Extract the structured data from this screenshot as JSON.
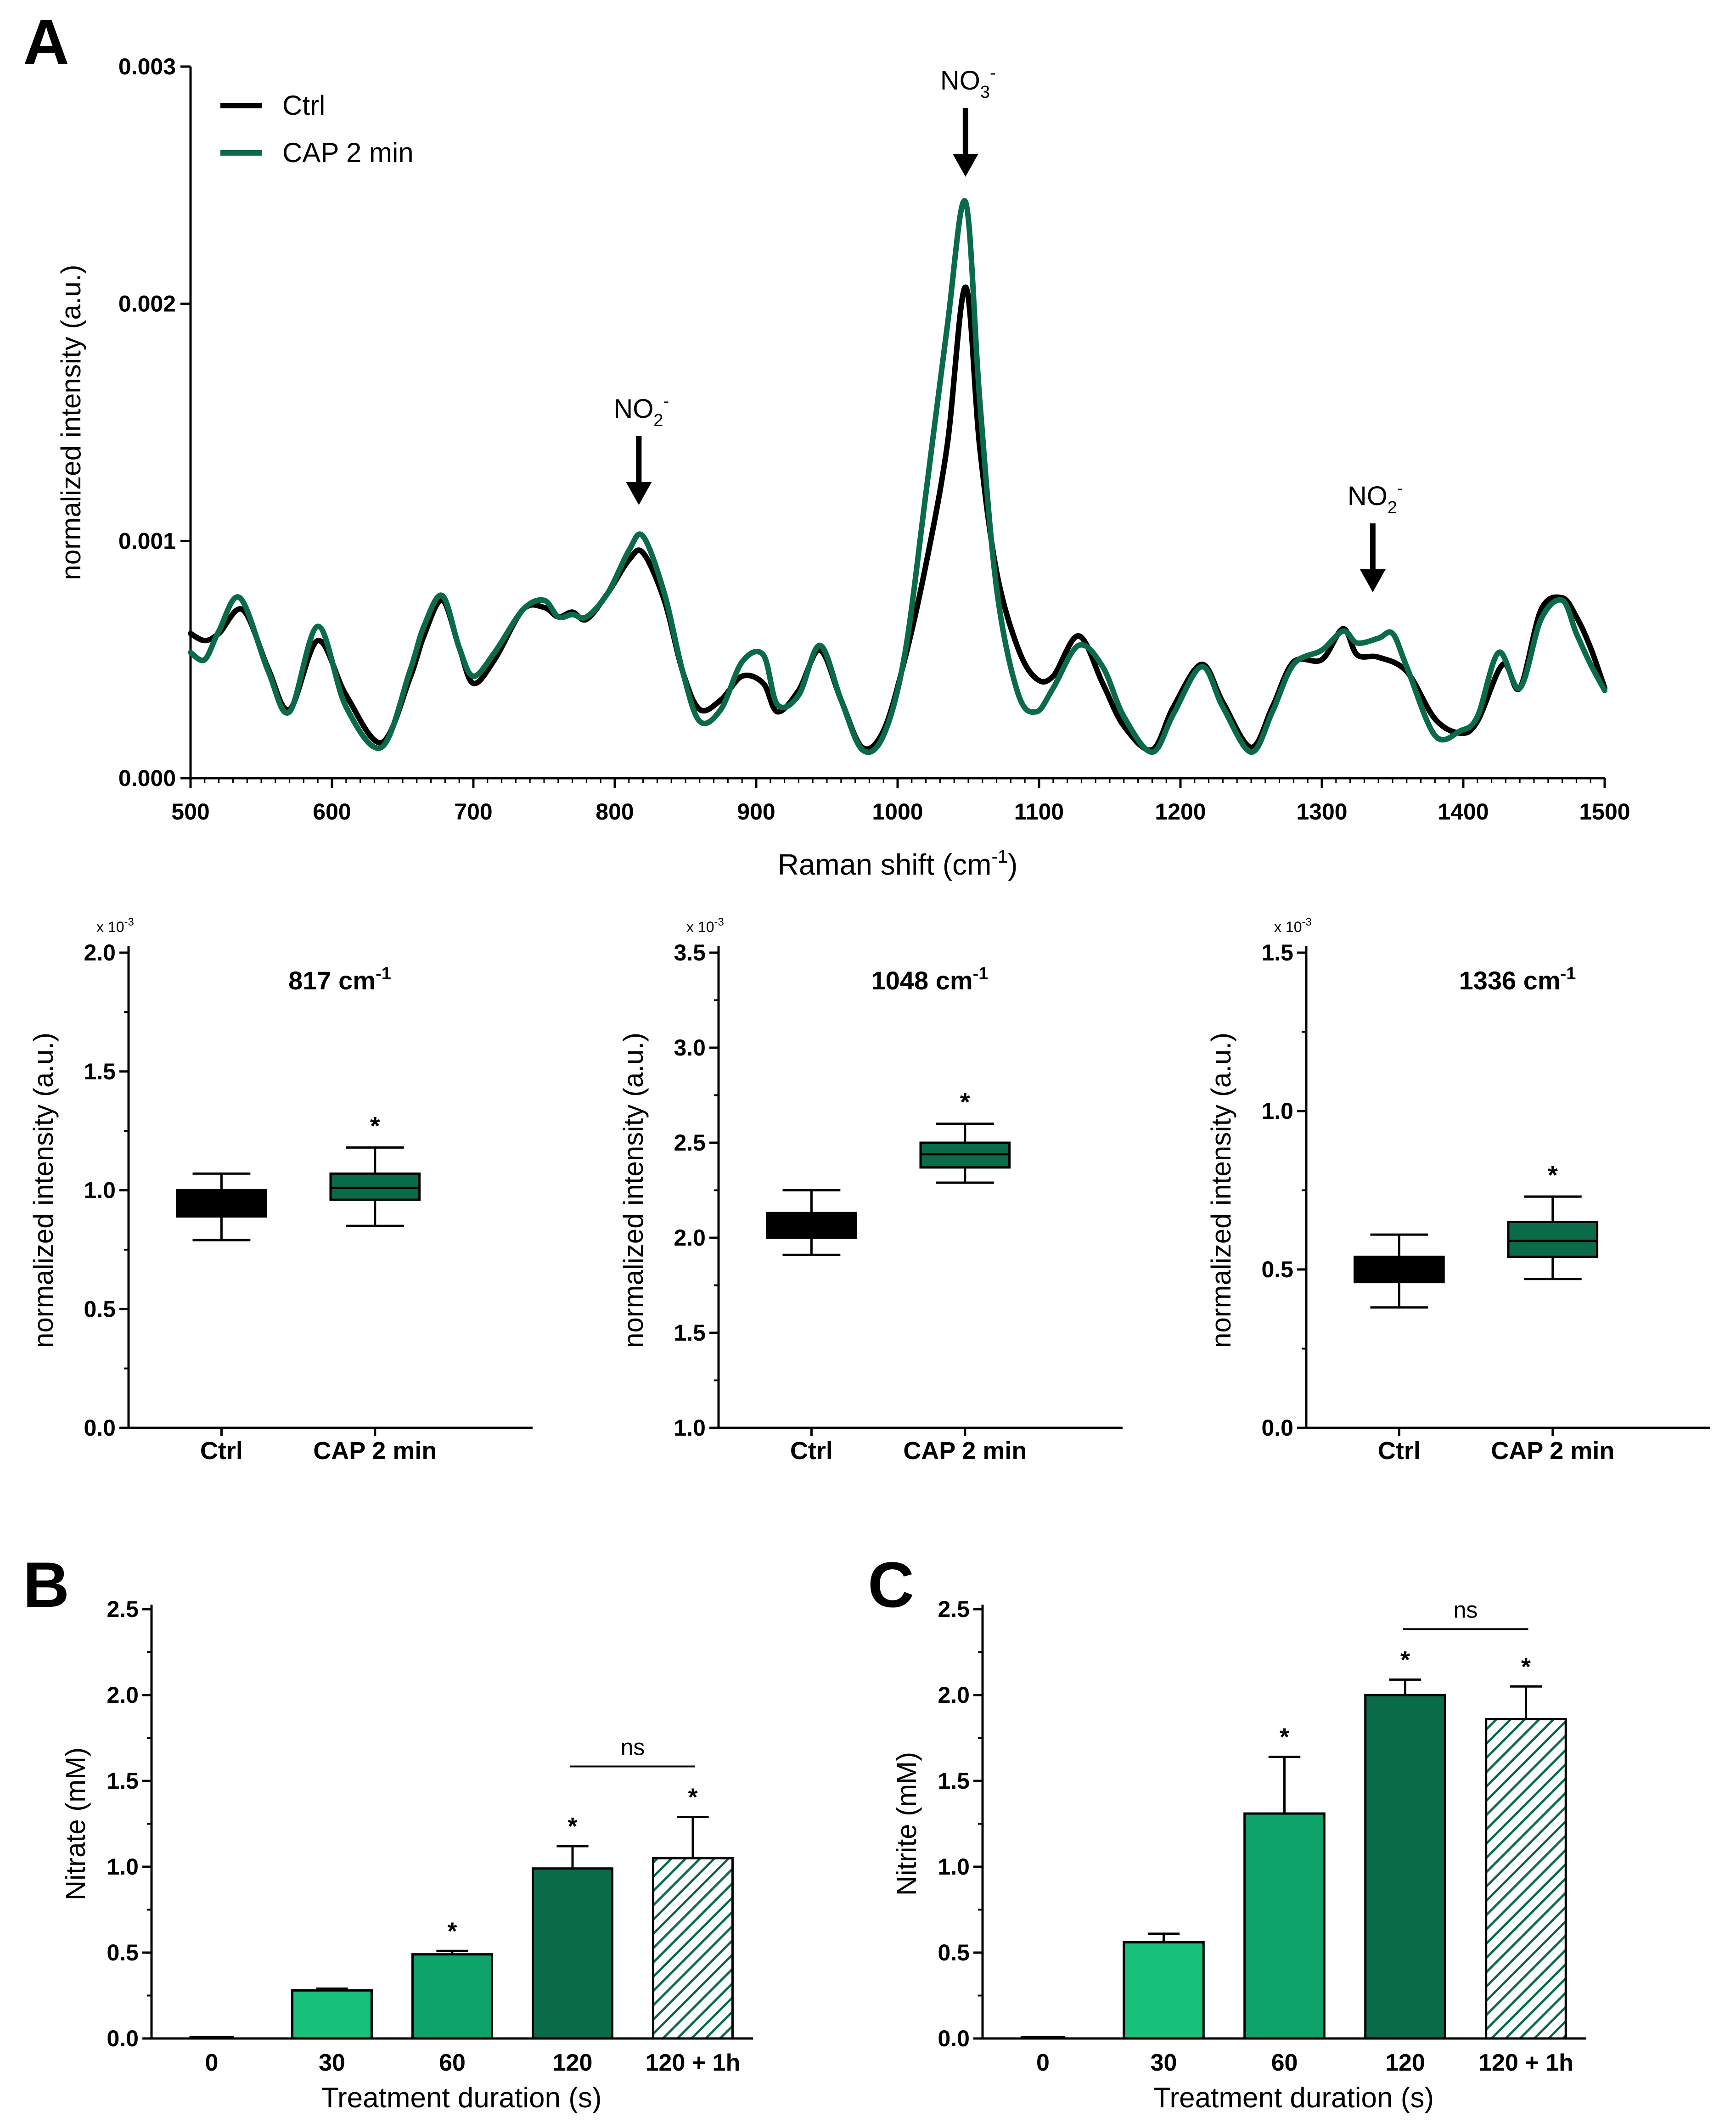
{
  "panels": {
    "A": "A",
    "B": "B",
    "C": "C"
  },
  "colors": {
    "ctrl": "#000000",
    "cap": "#0a6b49",
    "bar30": "#17c17b",
    "bar60": "#0ea36b",
    "bar120": "#0a6b49",
    "hatch": "#0a6b49"
  },
  "chart_data": [
    {
      "id": "spectrum",
      "type": "line",
      "title": "",
      "xlabel": "Raman shift (cm",
      "xlabel_sup": "-1",
      "xlabel_close": ")",
      "ylabel": "normalized intensity (a.u.)",
      "xlim": [
        500,
        1500
      ],
      "ylim": [
        0,
        0.003
      ],
      "xticks": [
        "500",
        "600",
        "700",
        "800",
        "900",
        "1000",
        "1100",
        "1200",
        "1300",
        "1400",
        "1500"
      ],
      "yticks": [
        "0.000",
        "0.001",
        "0.002",
        "0.003"
      ],
      "legend": [
        "Ctrl",
        "CAP 2 min"
      ],
      "annotations": [
        {
          "x": 817,
          "base": "NO",
          "sub": "2",
          "sup": "-"
        },
        {
          "x": 1048,
          "base": "NO",
          "sub": "3",
          "sup": "-"
        },
        {
          "x": 1336,
          "base": "NO",
          "sub": "2",
          "sup": "-"
        }
      ],
      "series": [
        {
          "name": "Ctrl",
          "x": [
            500,
            510,
            520,
            537,
            555,
            570,
            590,
            610,
            635,
            655,
            665,
            678,
            690,
            700,
            715,
            735,
            750,
            760,
            770,
            780,
            795,
            810,
            820,
            835,
            848,
            860,
            875,
            890,
            905,
            915,
            930,
            945,
            960,
            975,
            990,
            1005,
            1020,
            1035,
            1048,
            1058,
            1070,
            1085,
            1098,
            1110,
            1128,
            1145,
            1160,
            1180,
            1195,
            1215,
            1230,
            1250,
            1265,
            1280,
            1300,
            1315,
            1325,
            1340,
            1360,
            1380,
            1398,
            1410,
            1428,
            1440,
            1455,
            1470,
            1480,
            1490,
            1500
          ],
          "y": [
            0.00061,
            0.00058,
            0.00061,
            0.00071,
            0.00046,
            0.00029,
            0.00058,
            0.00035,
            0.00015,
            0.00042,
            0.0006,
            0.00075,
            0.00055,
            0.0004,
            0.0005,
            0.00071,
            0.00072,
            0.00068,
            0.0007,
            0.00067,
            0.00078,
            0.00092,
            0.00095,
            0.00075,
            0.00045,
            0.00029,
            0.00033,
            0.00043,
            0.0004,
            0.00028,
            0.00037,
            0.00054,
            0.00033,
            0.00013,
            0.0002,
            0.0005,
            0.0009,
            0.0014,
            0.00207,
            0.0014,
            0.00087,
            0.00055,
            0.00042,
            0.00043,
            0.0006,
            0.0004,
            0.00022,
            0.00012,
            0.0003,
            0.00048,
            0.00032,
            0.00013,
            0.0003,
            0.00049,
            0.0005,
            0.00063,
            0.00052,
            0.00051,
            0.00045,
            0.00025,
            0.00019,
            0.00024,
            0.00048,
            0.00038,
            0.00071,
            0.00076,
            0.00068,
            0.00055,
            0.00038
          ]
        },
        {
          "name": "CAP 2 min",
          "x": [
            500,
            510,
            520,
            535,
            555,
            570,
            590,
            610,
            635,
            655,
            665,
            678,
            690,
            700,
            715,
            735,
            750,
            760,
            770,
            780,
            795,
            810,
            820,
            835,
            848,
            860,
            875,
            890,
            905,
            915,
            930,
            945,
            960,
            975,
            990,
            1005,
            1020,
            1035,
            1048,
            1058,
            1070,
            1085,
            1098,
            1110,
            1128,
            1145,
            1160,
            1180,
            1195,
            1215,
            1230,
            1250,
            1265,
            1280,
            1300,
            1315,
            1325,
            1340,
            1350,
            1360,
            1380,
            1398,
            1410,
            1425,
            1440,
            1455,
            1470,
            1480,
            1490,
            1500
          ],
          "y": [
            0.00053,
            0.0005,
            0.00062,
            0.00076,
            0.00045,
            0.00028,
            0.00064,
            0.0003,
            0.00013,
            0.00045,
            0.00064,
            0.00077,
            0.00055,
            0.00043,
            0.00053,
            0.00071,
            0.00075,
            0.00068,
            0.00069,
            0.00068,
            0.00078,
            0.00096,
            0.00102,
            0.00078,
            0.00045,
            0.00024,
            0.00029,
            0.00049,
            0.00052,
            0.00031,
            0.00035,
            0.00056,
            0.00033,
            0.00012,
            0.00018,
            0.00052,
            0.0012,
            0.0019,
            0.00243,
            0.0016,
            0.0008,
            0.00036,
            0.00028,
            0.00038,
            0.00056,
            0.00047,
            0.00026,
            0.00011,
            0.00027,
            0.00047,
            0.0003,
            0.00011,
            0.00028,
            0.00048,
            0.00054,
            0.00062,
            0.00057,
            0.00059,
            0.00061,
            0.00047,
            0.00018,
            0.0002,
            0.00026,
            0.00053,
            0.00038,
            0.00067,
            0.00075,
            0.00061,
            0.00048,
            0.00037
          ]
        }
      ]
    },
    {
      "id": "box817",
      "type": "box",
      "title": "817 cm",
      "title_sup": "-1",
      "ylabel": "normalized intensity (a.u.)",
      "scale_label": "x 10",
      "scale_sup": "-3",
      "ylim": [
        0,
        2.0
      ],
      "yticks": [
        "0.0",
        "0.5",
        "1.0",
        "1.5",
        "2.0"
      ],
      "categories": [
        "Ctrl",
        "CAP 2 min"
      ],
      "boxes": [
        {
          "min": 0.79,
          "q1": 0.89,
          "median": 0.95,
          "q3": 1.0,
          "max": 1.07
        },
        {
          "min": 0.85,
          "q1": 0.96,
          "median": 1.01,
          "q3": 1.07,
          "max": 1.18
        }
      ],
      "significance": [
        "",
        "*"
      ]
    },
    {
      "id": "box1048",
      "type": "box",
      "title": "1048 cm",
      "title_sup": "-1",
      "ylabel": "normalized intensity (a.u.)",
      "scale_label": "x 10",
      "scale_sup": "-3",
      "ylim": [
        1.0,
        3.5
      ],
      "yticks": [
        "1.0",
        "1.5",
        "2.0",
        "2.5",
        "3.0",
        "3.5"
      ],
      "categories": [
        "Ctrl",
        "CAP 2 min"
      ],
      "boxes": [
        {
          "min": 1.91,
          "q1": 2.0,
          "median": 2.07,
          "q3": 2.13,
          "max": 2.25
        },
        {
          "min": 2.29,
          "q1": 2.37,
          "median": 2.44,
          "q3": 2.5,
          "max": 2.6
        }
      ],
      "significance": [
        "",
        "*"
      ]
    },
    {
      "id": "box1336",
      "type": "box",
      "title": "1336 cm",
      "title_sup": "-1",
      "ylabel": "normalized intensity (a.u.)",
      "scale_label": "x 10",
      "scale_sup": "-3",
      "ylim": [
        0,
        1.5
      ],
      "yticks": [
        "0.0",
        "0.5",
        "1.0",
        "1.5"
      ],
      "categories": [
        "Ctrl",
        "CAP 2 min"
      ],
      "boxes": [
        {
          "min": 0.38,
          "q1": 0.46,
          "median": 0.5,
          "q3": 0.54,
          "max": 0.61
        },
        {
          "min": 0.47,
          "q1": 0.54,
          "median": 0.59,
          "q3": 0.65,
          "max": 0.73
        }
      ],
      "significance": [
        "",
        "*"
      ]
    },
    {
      "id": "nitrate",
      "type": "bar",
      "xlabel": "Treatment duration (s)",
      "ylabel": "Nitrate (mM)",
      "ylim": [
        0,
        2.5
      ],
      "yticks": [
        "0.0",
        "0.5",
        "1.0",
        "1.5",
        "2.0",
        "2.5"
      ],
      "categories": [
        "0",
        "30",
        "60",
        "120",
        "120 + 1h"
      ],
      "values": [
        0.0,
        0.28,
        0.49,
        0.99,
        1.05
      ],
      "errors": [
        0.0,
        0.01,
        0.02,
        0.13,
        0.24
      ],
      "significance": [
        "",
        "",
        "*",
        "*",
        "*"
      ],
      "ns_label": "ns"
    },
    {
      "id": "nitrite",
      "type": "bar",
      "xlabel": "Treatment duration (s)",
      "ylabel": "Nitrite (mM)",
      "ylim": [
        0,
        2.5
      ],
      "yticks": [
        "0.0",
        "0.5",
        "1.0",
        "1.5",
        "2.0",
        "2.5"
      ],
      "categories": [
        "0",
        "30",
        "60",
        "120",
        "120 + 1h"
      ],
      "values": [
        0.0,
        0.56,
        1.31,
        2.0,
        1.86
      ],
      "errors": [
        0.0,
        0.05,
        0.33,
        0.09,
        0.19
      ],
      "significance": [
        "",
        "",
        "*",
        "*",
        "*"
      ],
      "ns_label": "ns"
    }
  ]
}
